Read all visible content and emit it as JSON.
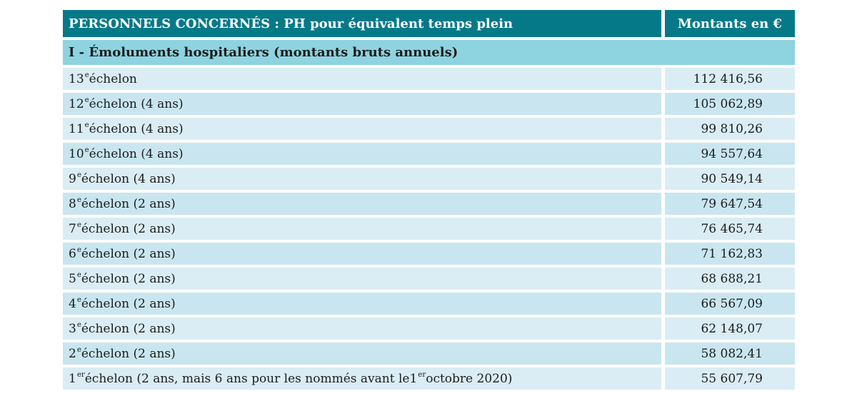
{
  "colors": {
    "header_bg": "#067988",
    "header_text": "#ffffff",
    "section_bg": "#8ed3e0",
    "row_light": "#daedf4",
    "row_dark": "#c9e6f0",
    "text": "#1c1c1c"
  },
  "table": {
    "header": {
      "title": "PERSONNELS CONCERNÉS : PH pour équivalent temps plein",
      "amount_col": "Montants en €"
    },
    "section": {
      "title": "I - Émoluments hospitaliers (montants bruts annuels)"
    },
    "rows": [
      {
        "parts": [
          {
            "text": "13",
            "sup": false
          },
          {
            "text": "e",
            "sup": true
          },
          {
            "text": " échelon",
            "sup": false
          }
        ],
        "amount": "112 416,56"
      },
      {
        "parts": [
          {
            "text": "12",
            "sup": false
          },
          {
            "text": "e",
            "sup": true
          },
          {
            "text": " échelon (4 ans)",
            "sup": false
          }
        ],
        "amount": "105 062,89"
      },
      {
        "parts": [
          {
            "text": "11",
            "sup": false
          },
          {
            "text": "e",
            "sup": true
          },
          {
            "text": " échelon (4 ans)",
            "sup": false
          }
        ],
        "amount": "99 810,26"
      },
      {
        "parts": [
          {
            "text": "10",
            "sup": false
          },
          {
            "text": "e",
            "sup": true
          },
          {
            "text": " échelon (4 ans)",
            "sup": false
          }
        ],
        "amount": "94 557,64"
      },
      {
        "parts": [
          {
            "text": "9",
            "sup": false
          },
          {
            "text": "e",
            "sup": true
          },
          {
            "text": " échelon (4 ans)",
            "sup": false
          }
        ],
        "amount": "90 549,14"
      },
      {
        "parts": [
          {
            "text": "8",
            "sup": false
          },
          {
            "text": "e",
            "sup": true
          },
          {
            "text": " échelon (2 ans)",
            "sup": false
          }
        ],
        "amount": "79 647,54"
      },
      {
        "parts": [
          {
            "text": "7",
            "sup": false
          },
          {
            "text": "e",
            "sup": true
          },
          {
            "text": " échelon (2 ans)",
            "sup": false
          }
        ],
        "amount": "76 465,74"
      },
      {
        "parts": [
          {
            "text": "6",
            "sup": false
          },
          {
            "text": "e",
            "sup": true
          },
          {
            "text": " échelon (2 ans)",
            "sup": false
          }
        ],
        "amount": "71 162,83"
      },
      {
        "parts": [
          {
            "text": "5",
            "sup": false
          },
          {
            "text": "e",
            "sup": true
          },
          {
            "text": " échelon (2 ans)",
            "sup": false
          }
        ],
        "amount": "68 688,21"
      },
      {
        "parts": [
          {
            "text": "4",
            "sup": false
          },
          {
            "text": "e",
            "sup": true
          },
          {
            "text": " échelon (2 ans)",
            "sup": false
          }
        ],
        "amount": "66 567,09"
      },
      {
        "parts": [
          {
            "text": "3",
            "sup": false
          },
          {
            "text": "e",
            "sup": true
          },
          {
            "text": " échelon (2 ans)",
            "sup": false
          }
        ],
        "amount": "62 148,07"
      },
      {
        "parts": [
          {
            "text": "2",
            "sup": false
          },
          {
            "text": "e",
            "sup": true
          },
          {
            "text": " échelon (2 ans)",
            "sup": false
          }
        ],
        "amount": "58 082,41"
      },
      {
        "parts": [
          {
            "text": "1",
            "sup": false
          },
          {
            "text": "er",
            "sup": true
          },
          {
            "text": " échelon (2 ans, mais 6 ans pour les nommés avant le ",
            "sup": false
          },
          {
            "text": "1",
            "sup": false
          },
          {
            "text": "er",
            "sup": true
          },
          {
            "text": " octobre 2020)",
            "sup": false
          }
        ],
        "amount": "55 607,79"
      }
    ]
  }
}
